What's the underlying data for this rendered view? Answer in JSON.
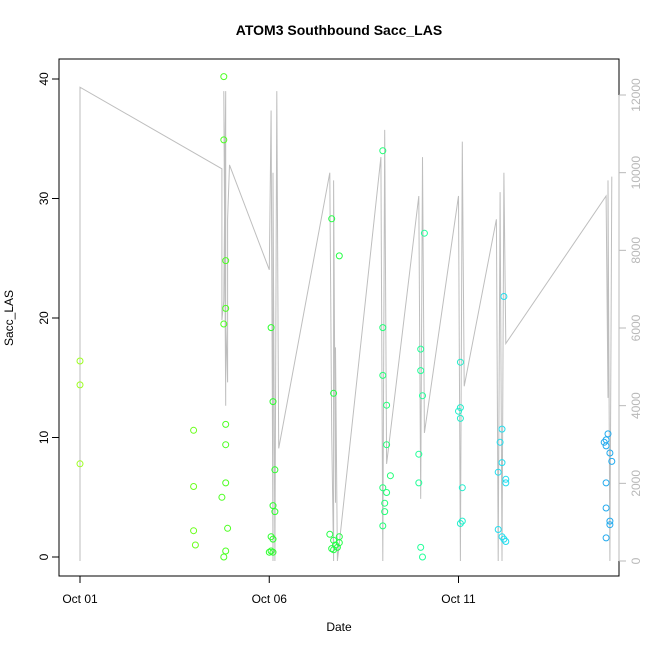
{
  "chart_data": {
    "type": "scatter",
    "title": "ATOM3 Southbound Sacc_LAS",
    "xlabel": "Date",
    "ylabel": "Sacc_LAS",
    "x_ticks": [
      "Oct 01",
      "Oct 06",
      "Oct 11"
    ],
    "x_range_days": [
      1,
      15
    ],
    "ylim": [
      0,
      40
    ],
    "y_ticks": [
      0,
      10,
      20,
      30,
      40
    ],
    "y2lim": [
      0,
      12000
    ],
    "y2_ticks": [
      0,
      2000,
      4000,
      6000,
      8000,
      10000,
      12000
    ],
    "grid": false,
    "legend": "none",
    "colors": {
      "line": "#bebebe",
      "right_axis": "#b8b8b8",
      "frame": "#000000"
    },
    "points": [
      {
        "x": 1.0,
        "y": 16.4,
        "c": "#9dff1f"
      },
      {
        "x": 1.0,
        "y": 14.4,
        "c": "#9dff1f"
      },
      {
        "x": 1.0,
        "y": 7.8,
        "c": "#9dff1f"
      },
      {
        "x": 4.0,
        "y": 10.6,
        "c": "#6bff1c"
      },
      {
        "x": 4.0,
        "y": 5.9,
        "c": "#6bff1c"
      },
      {
        "x": 4.0,
        "y": 2.2,
        "c": "#6bff1c"
      },
      {
        "x": 4.05,
        "y": 1.0,
        "c": "#6bff1c"
      },
      {
        "x": 4.75,
        "y": 5.0,
        "c": "#4dff22"
      },
      {
        "x": 4.8,
        "y": 40.2,
        "c": "#4dff22"
      },
      {
        "x": 4.8,
        "y": 34.9,
        "c": "#4dff22"
      },
      {
        "x": 4.85,
        "y": 24.8,
        "c": "#4dff22"
      },
      {
        "x": 4.85,
        "y": 20.8,
        "c": "#4dff22"
      },
      {
        "x": 4.8,
        "y": 19.5,
        "c": "#4dff22"
      },
      {
        "x": 4.85,
        "y": 11.1,
        "c": "#4dff22"
      },
      {
        "x": 4.85,
        "y": 9.4,
        "c": "#4dff22"
      },
      {
        "x": 4.85,
        "y": 6.2,
        "c": "#4dff22"
      },
      {
        "x": 4.9,
        "y": 2.4,
        "c": "#4dff22"
      },
      {
        "x": 4.85,
        "y": 0.5,
        "c": "#4dff22"
      },
      {
        "x": 4.8,
        "y": 0.0,
        "c": "#4dff22"
      },
      {
        "x": 6.05,
        "y": 19.2,
        "c": "#2cff2c"
      },
      {
        "x": 6.1,
        "y": 13.0,
        "c": "#2cff2c"
      },
      {
        "x": 6.15,
        "y": 7.3,
        "c": "#2cff2c"
      },
      {
        "x": 6.1,
        "y": 4.3,
        "c": "#2cff2c"
      },
      {
        "x": 6.15,
        "y": 3.8,
        "c": "#2cff2c"
      },
      {
        "x": 6.05,
        "y": 1.7,
        "c": "#2cff2c"
      },
      {
        "x": 6.1,
        "y": 1.5,
        "c": "#2cff2c"
      },
      {
        "x": 6.05,
        "y": 0.5,
        "c": "#2cff2c"
      },
      {
        "x": 6.1,
        "y": 0.4,
        "c": "#2cff2c"
      },
      {
        "x": 6.0,
        "y": 0.4,
        "c": "#2cff2c"
      },
      {
        "x": 7.65,
        "y": 28.3,
        "c": "#22ff44"
      },
      {
        "x": 7.85,
        "y": 25.2,
        "c": "#22ff44"
      },
      {
        "x": 7.7,
        "y": 13.7,
        "c": "#22ff44"
      },
      {
        "x": 7.6,
        "y": 1.9,
        "c": "#22ff44"
      },
      {
        "x": 7.85,
        "y": 1.7,
        "c": "#22ff44"
      },
      {
        "x": 7.7,
        "y": 1.4,
        "c": "#22ff44"
      },
      {
        "x": 7.85,
        "y": 1.2,
        "c": "#22ff44"
      },
      {
        "x": 7.75,
        "y": 1.0,
        "c": "#22ff44"
      },
      {
        "x": 7.65,
        "y": 0.7,
        "c": "#22ff44"
      },
      {
        "x": 7.7,
        "y": 0.6,
        "c": "#22ff44"
      },
      {
        "x": 7.8,
        "y": 0.8,
        "c": "#22ff44"
      },
      {
        "x": 9.0,
        "y": 34.0,
        "c": "#22ff77"
      },
      {
        "x": 9.0,
        "y": 19.2,
        "c": "#22ff77"
      },
      {
        "x": 9.0,
        "y": 15.2,
        "c": "#22ff77"
      },
      {
        "x": 9.1,
        "y": 12.7,
        "c": "#22ff77"
      },
      {
        "x": 9.1,
        "y": 9.4,
        "c": "#22ff77"
      },
      {
        "x": 9.2,
        "y": 6.8,
        "c": "#22ff77"
      },
      {
        "x": 9.0,
        "y": 5.8,
        "c": "#22ff77"
      },
      {
        "x": 9.1,
        "y": 5.4,
        "c": "#22ff77"
      },
      {
        "x": 9.05,
        "y": 4.5,
        "c": "#22ff77"
      },
      {
        "x": 9.05,
        "y": 3.8,
        "c": "#22ff77"
      },
      {
        "x": 9.0,
        "y": 2.6,
        "c": "#22ff77"
      },
      {
        "x": 10.1,
        "y": 27.1,
        "c": "#22ff99"
      },
      {
        "x": 10.0,
        "y": 17.4,
        "c": "#22ff99"
      },
      {
        "x": 10.0,
        "y": 15.6,
        "c": "#22ff99"
      },
      {
        "x": 10.05,
        "y": 13.5,
        "c": "#22ff99"
      },
      {
        "x": 9.95,
        "y": 8.6,
        "c": "#22ff99"
      },
      {
        "x": 9.95,
        "y": 6.2,
        "c": "#22ff99"
      },
      {
        "x": 10.0,
        "y": 0.8,
        "c": "#22ff99"
      },
      {
        "x": 10.05,
        "y": 0.0,
        "c": "#22ff99"
      },
      {
        "x": 11.05,
        "y": 16.3,
        "c": "#22eecc"
      },
      {
        "x": 11.05,
        "y": 12.5,
        "c": "#22eecc"
      },
      {
        "x": 11.0,
        "y": 12.2,
        "c": "#22eecc"
      },
      {
        "x": 11.05,
        "y": 11.6,
        "c": "#22eecc"
      },
      {
        "x": 11.1,
        "y": 5.8,
        "c": "#22eecc"
      },
      {
        "x": 11.1,
        "y": 3.0,
        "c": "#22eecc"
      },
      {
        "x": 11.05,
        "y": 2.8,
        "c": "#22eecc"
      },
      {
        "x": 12.2,
        "y": 21.8,
        "c": "#22ddee"
      },
      {
        "x": 12.15,
        "y": 10.7,
        "c": "#22ddee"
      },
      {
        "x": 12.1,
        "y": 9.6,
        "c": "#22ddee"
      },
      {
        "x": 12.15,
        "y": 7.9,
        "c": "#22ddee"
      },
      {
        "x": 12.05,
        "y": 7.1,
        "c": "#22ddee"
      },
      {
        "x": 12.25,
        "y": 6.5,
        "c": "#22ddee"
      },
      {
        "x": 12.25,
        "y": 6.2,
        "c": "#22ddee"
      },
      {
        "x": 12.05,
        "y": 2.3,
        "c": "#22ddee"
      },
      {
        "x": 12.15,
        "y": 1.7,
        "c": "#22ddee"
      },
      {
        "x": 12.2,
        "y": 1.5,
        "c": "#22ddee"
      },
      {
        "x": 12.25,
        "y": 1.3,
        "c": "#22ddee"
      },
      {
        "x": 14.95,
        "y": 10.3,
        "c": "#22aaee"
      },
      {
        "x": 14.9,
        "y": 9.8,
        "c": "#22aaee"
      },
      {
        "x": 14.85,
        "y": 9.6,
        "c": "#22aaee"
      },
      {
        "x": 14.9,
        "y": 9.3,
        "c": "#22aaee"
      },
      {
        "x": 15.0,
        "y": 8.7,
        "c": "#22aaee"
      },
      {
        "x": 15.05,
        "y": 8.0,
        "c": "#22aaee"
      },
      {
        "x": 14.9,
        "y": 6.2,
        "c": "#22aaee"
      },
      {
        "x": 14.9,
        "y": 4.1,
        "c": "#22aaee"
      },
      {
        "x": 15.0,
        "y": 3.0,
        "c": "#22aaee"
      },
      {
        "x": 15.0,
        "y": 2.7,
        "c": "#22aaee"
      },
      {
        "x": 14.9,
        "y": 1.6,
        "c": "#22aaee"
      }
    ],
    "series2": [
      [
        1.0,
        0
      ],
      [
        1.0,
        12200
      ],
      [
        4.75,
        10100
      ],
      [
        4.75,
        6200
      ],
      [
        4.8,
        6700
      ],
      [
        4.85,
        12100
      ],
      [
        4.85,
        4000
      ],
      [
        4.8,
        12100
      ],
      [
        4.85,
        6200
      ],
      [
        4.9,
        4600
      ],
      [
        4.9,
        8800
      ],
      [
        4.95,
        10200
      ],
      [
        6.0,
        7500
      ],
      [
        6.05,
        11600
      ],
      [
        6.1,
        0
      ],
      [
        6.1,
        10000
      ],
      [
        6.15,
        0
      ],
      [
        6.2,
        12100
      ],
      [
        6.25,
        2900
      ],
      [
        7.6,
        10000
      ],
      [
        7.65,
        3300
      ],
      [
        7.7,
        0
      ],
      [
        7.7,
        9800
      ],
      [
        7.75,
        1500
      ],
      [
        7.75,
        5500
      ],
      [
        7.8,
        0
      ],
      [
        8.95,
        10400
      ],
      [
        9.0,
        0
      ],
      [
        9.05,
        11100
      ],
      [
        9.1,
        2500
      ],
      [
        9.95,
        9400
      ],
      [
        10.0,
        1600
      ],
      [
        10.05,
        10400
      ],
      [
        10.1,
        3300
      ],
      [
        11.0,
        9400
      ],
      [
        11.05,
        0
      ],
      [
        11.1,
        10800
      ],
      [
        11.15,
        4500
      ],
      [
        12.0,
        8800
      ],
      [
        12.05,
        0
      ],
      [
        12.1,
        9500
      ],
      [
        12.15,
        0
      ],
      [
        12.2,
        10000
      ],
      [
        12.25,
        5600
      ],
      [
        14.9,
        9400
      ],
      [
        14.95,
        4200
      ],
      [
        14.95,
        9800
      ],
      [
        15.0,
        0
      ],
      [
        15.05,
        9900
      ]
    ]
  }
}
